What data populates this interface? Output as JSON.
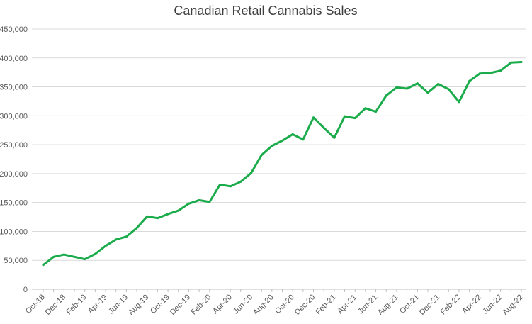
{
  "chart_data": {
    "type": "line",
    "title": "Canadian Retail Cannabis Sales",
    "xlabel": "",
    "ylabel": "",
    "ylim": [
      0,
      450000
    ],
    "yticks": [
      0,
      50000,
      100000,
      150000,
      200000,
      250000,
      300000,
      350000,
      400000,
      450000
    ],
    "ytick_labels": [
      "0",
      "50,000",
      "100,000",
      "150,000",
      "200,000",
      "250,000",
      "300,000",
      "350,000",
      "400,000",
      "450,000"
    ],
    "grid": true,
    "legend": "none",
    "line_color": "#1aab4b",
    "grid_color": "#d9d9d9",
    "axis_color": "#bfbfbf",
    "categories": [
      "Oct-18",
      "Nov-18",
      "Dec-18",
      "Jan-19",
      "Feb-19",
      "Mar-19",
      "Apr-19",
      "May-19",
      "Jun-19",
      "Jul-19",
      "Aug-19",
      "Sep-19",
      "Oct-19",
      "Nov-19",
      "Dec-19",
      "Jan-20",
      "Feb-20",
      "Mar-20",
      "Apr-20",
      "May-20",
      "Jun-20",
      "Jul-20",
      "Aug-20",
      "Sep-20",
      "Oct-20",
      "Nov-20",
      "Dec-20",
      "Jan-21",
      "Feb-21",
      "Mar-21",
      "Apr-21",
      "May-21",
      "Jun-21",
      "Jul-21",
      "Aug-21",
      "Sep-21",
      "Oct-21",
      "Nov-21",
      "Dec-21",
      "Jan-22",
      "Feb-22",
      "Mar-22",
      "Apr-22",
      "May-22",
      "Jun-22",
      "Jul-22",
      "Aug-22"
    ],
    "xtick_labels": [
      "Oct-18",
      "Dec-18",
      "Feb-19",
      "Apr-19",
      "Jun-19",
      "Aug-19",
      "Oct-19",
      "Dec-19",
      "Feb-20",
      "Apr-20",
      "Jun-20",
      "Aug-20",
      "Oct-20",
      "Dec-20",
      "Feb-21",
      "Apr-21",
      "Jun-21",
      "Aug-21",
      "Oct-21",
      "Dec-21",
      "Feb-22",
      "Apr-22",
      "Jun-22",
      "Aug-22"
    ],
    "series": [
      {
        "name": "Canadian Retail Cannabis Sales",
        "values": [
          42000,
          56000,
          60000,
          56000,
          52000,
          61000,
          75000,
          86000,
          91000,
          106000,
          126000,
          123000,
          130000,
          136000,
          148000,
          154000,
          151000,
          181000,
          178000,
          186000,
          201000,
          232000,
          248000,
          257000,
          268000,
          259000,
          297000,
          279000,
          262000,
          299000,
          296000,
          313000,
          307000,
          335000,
          349000,
          347000,
          356000,
          340000,
          355000,
          346000,
          324000,
          360000,
          373000,
          374000,
          378000,
          392000,
          393000
        ]
      }
    ]
  }
}
